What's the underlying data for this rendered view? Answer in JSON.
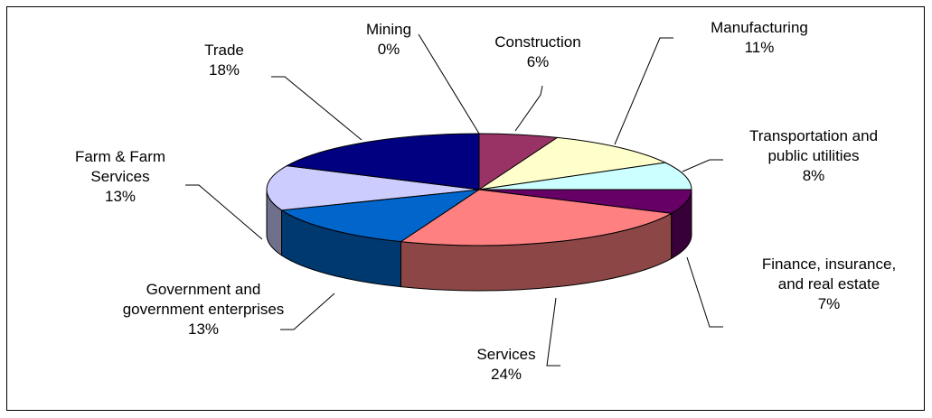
{
  "chart_data": {
    "type": "pie3d",
    "categories": [
      "Mining",
      "Construction",
      "Manufacturing",
      "Transportation and public utilities",
      "Finance, insurance, and real estate",
      "Services",
      "Government and government enterprises",
      "Farm & Farm Services",
      "Trade"
    ],
    "values": [
      0,
      6,
      11,
      8,
      7,
      24,
      13,
      13,
      18
    ],
    "value_labels": [
      "0%",
      "6%",
      "11%",
      "8%",
      "7%",
      "24%",
      "13%",
      "13%",
      "18%"
    ],
    "colors": [
      "#9999ff",
      "#993366",
      "#ffffcc",
      "#ccffff",
      "#660066",
      "#ff8080",
      "#0066cc",
      "#ccccff",
      "#000080"
    ]
  }
}
